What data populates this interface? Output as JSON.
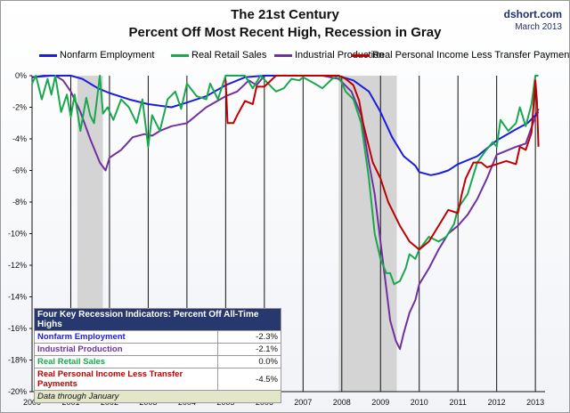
{
  "source": {
    "site": "dshort.com",
    "date": "March 2013"
  },
  "chart_data": {
    "type": "line",
    "title": "The 21st Century",
    "subtitle": "Percent Off Most Recent High, Recession in Gray",
    "xlabel": "",
    "ylabel": "",
    "xlim": [
      2000,
      2013.25
    ],
    "ylim": [
      -20,
      0
    ],
    "x_ticks": [
      "2000",
      "2001",
      "2002",
      "2003",
      "2004",
      "2005",
      "2006",
      "2007",
      "2008",
      "2009",
      "2010",
      "2011",
      "2012",
      "2013"
    ],
    "y_ticks": [
      "0%",
      "-2%",
      "-4%",
      "-6%",
      "-8%",
      "-10%",
      "-12%",
      "-14%",
      "-16%",
      "-18%",
      "-20%"
    ],
    "recessions": [
      [
        2001.17,
        2001.83
      ],
      [
        2007.92,
        2009.42
      ]
    ],
    "grid": "vertical lines at year boundaries",
    "legend_position": "top",
    "series": [
      {
        "name": "Nonfarm Employment",
        "color": "#1c1ce0",
        "points": [
          [
            2000,
            -0.1
          ],
          [
            2000.5,
            0
          ],
          [
            2001,
            0
          ],
          [
            2001.3,
            -0.2
          ],
          [
            2001.7,
            -0.8
          ],
          [
            2002,
            -1.1
          ],
          [
            2002.5,
            -1.5
          ],
          [
            2003,
            -1.8
          ],
          [
            2003.6,
            -2
          ],
          [
            2004,
            -1.7
          ],
          [
            2004.5,
            -1.3
          ],
          [
            2005,
            -0.6
          ],
          [
            2005.5,
            -0.1
          ],
          [
            2006,
            0
          ],
          [
            2007,
            0
          ],
          [
            2007.9,
            0
          ],
          [
            2008.3,
            -0.3
          ],
          [
            2008.7,
            -1
          ],
          [
            2009,
            -2.3
          ],
          [
            2009.3,
            -3.9
          ],
          [
            2009.6,
            -5.1
          ],
          [
            2009.9,
            -5.7
          ],
          [
            2010,
            -6.1
          ],
          [
            2010.3,
            -6.3
          ],
          [
            2010.5,
            -6.2
          ],
          [
            2010.75,
            -6
          ],
          [
            2011,
            -5.6
          ],
          [
            2011.5,
            -5.1
          ],
          [
            2012,
            -4.1
          ],
          [
            2012.5,
            -3.4
          ],
          [
            2012.8,
            -3
          ],
          [
            2013,
            -2.5
          ],
          [
            2013.08,
            -2.3
          ]
        ]
      },
      {
        "name": "Real Retail Sales",
        "color": "#19a84d",
        "points": [
          [
            2000,
            -0.5
          ],
          [
            2000.1,
            0
          ],
          [
            2000.25,
            -1.5
          ],
          [
            2000.4,
            -0.2
          ],
          [
            2000.5,
            -1.2
          ],
          [
            2000.6,
            0
          ],
          [
            2000.75,
            -2.3
          ],
          [
            2000.9,
            -1.2
          ],
          [
            2001,
            -2.6
          ],
          [
            2001.1,
            -1.2
          ],
          [
            2001.25,
            -3.5
          ],
          [
            2001.4,
            -1.4
          ],
          [
            2001.5,
            -2.5
          ],
          [
            2001.6,
            -3
          ],
          [
            2001.75,
            0
          ],
          [
            2001.83,
            -2.4
          ],
          [
            2001.95,
            -2
          ],
          [
            2002.1,
            -2.8
          ],
          [
            2002.3,
            -1.5
          ],
          [
            2002.5,
            -2
          ],
          [
            2002.7,
            -3
          ],
          [
            2002.85,
            -1.5
          ],
          [
            2003,
            -4.5
          ],
          [
            2003.1,
            -2.5
          ],
          [
            2003.3,
            -3.5
          ],
          [
            2003.5,
            -1.5
          ],
          [
            2003.7,
            -1
          ],
          [
            2003.85,
            -2.1
          ],
          [
            2004,
            -0.5
          ],
          [
            2004.25,
            -1.3
          ],
          [
            2004.5,
            -1.5
          ],
          [
            2004.6,
            -0.5
          ],
          [
            2004.8,
            -1.5
          ],
          [
            2005,
            0
          ],
          [
            2005.25,
            0
          ],
          [
            2005.5,
            0
          ],
          [
            2005.7,
            -0.8
          ],
          [
            2005.9,
            0
          ],
          [
            2006.1,
            -0.5
          ],
          [
            2006.3,
            -1
          ],
          [
            2006.5,
            -0.8
          ],
          [
            2006.7,
            -0.2
          ],
          [
            2006.9,
            -0.3
          ],
          [
            2007,
            -0.1
          ],
          [
            2007.3,
            -0.5
          ],
          [
            2007.5,
            -0.8
          ],
          [
            2007.75,
            -0.2
          ],
          [
            2007.92,
            0
          ],
          [
            2008.1,
            -1
          ],
          [
            2008.3,
            -1.5
          ],
          [
            2008.5,
            -3
          ],
          [
            2008.7,
            -6.5
          ],
          [
            2008.85,
            -10
          ],
          [
            2009,
            -11.6
          ],
          [
            2009.15,
            -12.5
          ],
          [
            2009.25,
            -12.5
          ],
          [
            2009.35,
            -13.2
          ],
          [
            2009.5,
            -13
          ],
          [
            2009.65,
            -12.2
          ],
          [
            2009.75,
            -11.3
          ],
          [
            2009.9,
            -11.6
          ],
          [
            2010,
            -11
          ],
          [
            2010.25,
            -10.2
          ],
          [
            2010.5,
            -10.5
          ],
          [
            2010.7,
            -10.2
          ],
          [
            2010.9,
            -9.4
          ],
          [
            2011,
            -8.4
          ],
          [
            2011.25,
            -7.5
          ],
          [
            2011.5,
            -5.5
          ],
          [
            2011.7,
            -4.8
          ],
          [
            2011.9,
            -4.2
          ],
          [
            2012,
            -4.5
          ],
          [
            2012.1,
            -2.8
          ],
          [
            2012.3,
            -3.5
          ],
          [
            2012.5,
            -3
          ],
          [
            2012.6,
            -2
          ],
          [
            2012.75,
            -3.2
          ],
          [
            2012.9,
            -1.8
          ],
          [
            2013,
            0
          ],
          [
            2013.08,
            0
          ]
        ]
      },
      {
        "name": "Industrial Production",
        "color": "#7030a0",
        "points": [
          [
            2000,
            -0.1
          ],
          [
            2000.3,
            0
          ],
          [
            2000.6,
            0
          ],
          [
            2000.8,
            -0.3
          ],
          [
            2001,
            -1
          ],
          [
            2001.25,
            -2.3
          ],
          [
            2001.5,
            -4
          ],
          [
            2001.75,
            -5.5
          ],
          [
            2001.9,
            -6
          ],
          [
            2002,
            -5.2
          ],
          [
            2002.3,
            -4.7
          ],
          [
            2002.6,
            -3.9
          ],
          [
            2002.9,
            -3.7
          ],
          [
            2003.1,
            -3.8
          ],
          [
            2003.3,
            -3.5
          ],
          [
            2003.6,
            -3.2
          ],
          [
            2004,
            -3
          ],
          [
            2004.5,
            -2
          ],
          [
            2005,
            -1.3
          ],
          [
            2005.3,
            -1
          ],
          [
            2005.6,
            -0.3
          ],
          [
            2005.8,
            -0.6
          ],
          [
            2006,
            0
          ],
          [
            2006.5,
            0
          ],
          [
            2007,
            0
          ],
          [
            2007.5,
            0
          ],
          [
            2007.92,
            -0.2
          ],
          [
            2008.25,
            -1
          ],
          [
            2008.5,
            -2.5
          ],
          [
            2008.7,
            -5.5
          ],
          [
            2008.85,
            -7.5
          ],
          [
            2009,
            -10.5
          ],
          [
            2009.15,
            -13.5
          ],
          [
            2009.25,
            -15.5
          ],
          [
            2009.4,
            -16.8
          ],
          [
            2009.5,
            -17.3
          ],
          [
            2009.6,
            -16.3
          ],
          [
            2009.75,
            -15
          ],
          [
            2009.9,
            -14.2
          ],
          [
            2010,
            -13.2
          ],
          [
            2010.25,
            -12.2
          ],
          [
            2010.5,
            -11
          ],
          [
            2010.75,
            -10
          ],
          [
            2011,
            -9.5
          ],
          [
            2011.25,
            -8.8
          ],
          [
            2011.5,
            -7.8
          ],
          [
            2011.75,
            -6.5
          ],
          [
            2012,
            -5
          ],
          [
            2012.5,
            -4.5
          ],
          [
            2012.75,
            -4.3
          ],
          [
            2013,
            -2.6
          ],
          [
            2013.08,
            -2.1
          ]
        ]
      },
      {
        "name": "Real Personal Income Less Transfer Payments",
        "color": "#c00000",
        "points": [
          [
            2005,
            -0.3
          ],
          [
            2005.05,
            -3
          ],
          [
            2005.2,
            -3
          ],
          [
            2005.3,
            -2.5
          ],
          [
            2005.5,
            -1.6
          ],
          [
            2005.7,
            -1.8
          ],
          [
            2005.8,
            -0.7
          ],
          [
            2006,
            -0.7
          ],
          [
            2006.3,
            0
          ],
          [
            2006.6,
            0
          ],
          [
            2007,
            0
          ],
          [
            2007.5,
            0
          ],
          [
            2007.92,
            0
          ],
          [
            2008.1,
            -0.2
          ],
          [
            2008.3,
            -0.6
          ],
          [
            2008.45,
            -1.6
          ],
          [
            2008.55,
            -3
          ],
          [
            2008.7,
            -4.5
          ],
          [
            2008.8,
            -5.5
          ],
          [
            2009,
            -6.5
          ],
          [
            2009.2,
            -8
          ],
          [
            2009.5,
            -9.5
          ],
          [
            2009.75,
            -10.5
          ],
          [
            2010,
            -11
          ],
          [
            2010.25,
            -10.5
          ],
          [
            2010.5,
            -9.5
          ],
          [
            2010.75,
            -8.5
          ],
          [
            2011,
            -8.7
          ],
          [
            2011.1,
            -7.5
          ],
          [
            2011.2,
            -6.5
          ],
          [
            2011.4,
            -5.5
          ],
          [
            2011.6,
            -5.5
          ],
          [
            2011.75,
            -5.8
          ],
          [
            2012,
            -5.6
          ],
          [
            2012.25,
            -5.4
          ],
          [
            2012.5,
            -5.6
          ],
          [
            2012.6,
            -4.5
          ],
          [
            2012.75,
            -4.7
          ],
          [
            2012.9,
            -3.6
          ],
          [
            2013,
            -0.3
          ],
          [
            2013.04,
            -1.6
          ],
          [
            2013.08,
            -4.5
          ]
        ]
      }
    ],
    "table": {
      "title": "Four Key Recession Indicators: Percent Off All-Time Highs",
      "rows": [
        {
          "label": "Nonfarm Employment",
          "value": "-2.3%",
          "color": "#1c1ce0"
        },
        {
          "label": "Industrial Production",
          "value": "-2.1%",
          "color": "#7030a0"
        },
        {
          "label": "Real Retail Sales",
          "value": "0.0%",
          "color": "#19a84d"
        },
        {
          "label": "Real Personal Income Less Transfer Payments",
          "value": "-4.5%",
          "color": "#c00000"
        }
      ],
      "note": "Data through January"
    }
  }
}
